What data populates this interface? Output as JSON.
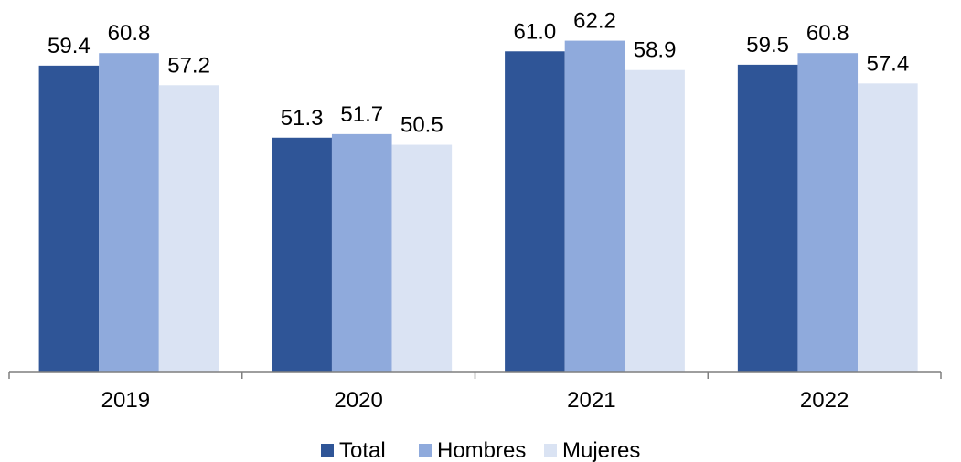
{
  "chart_data": {
    "type": "bar",
    "categories": [
      "2019",
      "2020",
      "2021",
      "2022"
    ],
    "series": [
      {
        "name": "Total",
        "values": [
          59.4,
          51.3,
          61.0,
          59.5
        ],
        "labels": [
          "59.4",
          "51.3",
          "61.0",
          "59.5"
        ],
        "color": "#2f5597"
      },
      {
        "name": "Hombres",
        "values": [
          60.8,
          51.7,
          62.2,
          60.8
        ],
        "labels": [
          "60.8",
          "51.7",
          "62.2",
          "60.8"
        ],
        "color": "#8faadc"
      },
      {
        "name": "Mujeres",
        "values": [
          57.2,
          50.5,
          58.9,
          57.4
        ],
        "labels": [
          "57.2",
          "50.5",
          "58.9",
          "57.4"
        ],
        "color": "#dae3f3"
      }
    ],
    "title": "",
    "xlabel": "",
    "ylabel": "",
    "ylim": [
      25,
      65
    ],
    "grid": false,
    "legend": "bottom",
    "axis_color": "#7f7f7f"
  }
}
